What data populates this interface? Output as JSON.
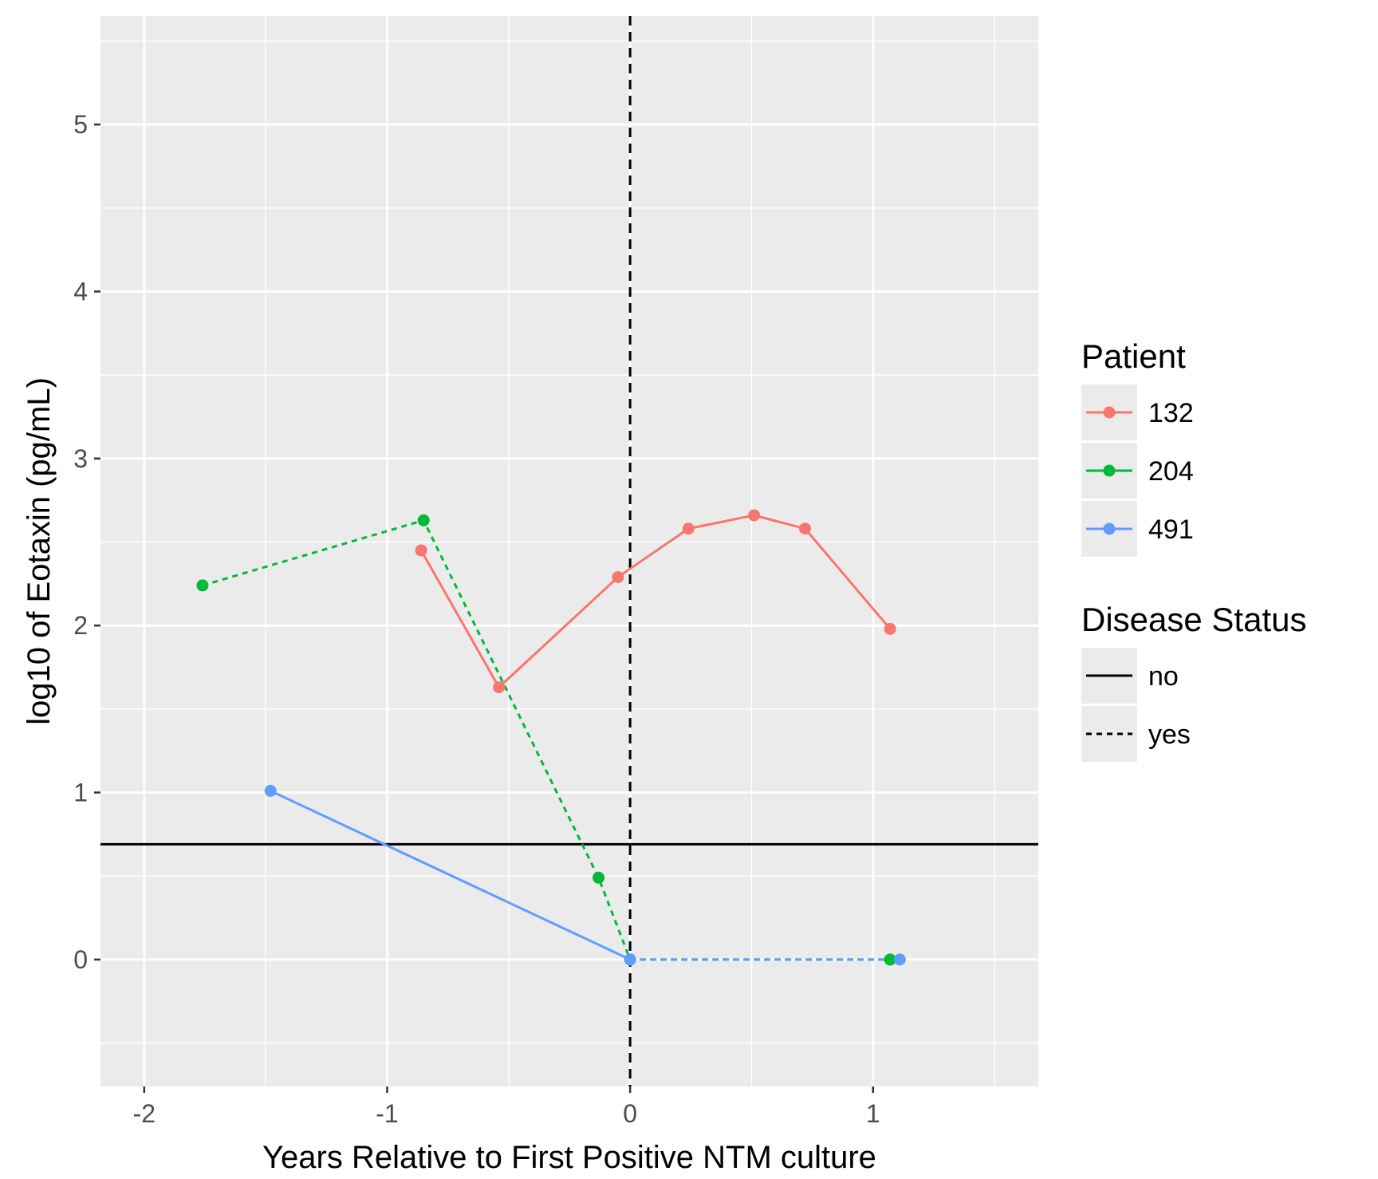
{
  "chart_data": {
    "type": "line",
    "title": "",
    "xlabel": "Years Relative to First Positive NTM culture",
    "ylabel": "log10 of Eotaxin (pg/mL)",
    "xlim": [
      -2.18,
      1.68
    ],
    "ylim": [
      -0.76,
      5.65
    ],
    "x_ticks": [
      -2,
      -1,
      0,
      1
    ],
    "x_tick_labels": [
      "-2",
      "-1",
      "0",
      "1"
    ],
    "y_ticks": [
      0,
      1,
      2,
      3,
      4,
      5
    ],
    "y_tick_labels": [
      "0",
      "1",
      "2",
      "3",
      "4",
      "5"
    ],
    "grid": true,
    "background": "#ebebeb",
    "reference_lines": [
      {
        "orientation": "vertical",
        "value": 0,
        "linetype": "dashed",
        "color": "#000000"
      },
      {
        "orientation": "horizontal",
        "value": 0.69,
        "linetype": "solid",
        "color": "#000000"
      }
    ],
    "series": [
      {
        "name": "132",
        "color": "#F8766D",
        "segments": [
          {
            "status": "no",
            "points": [
              [
                -0.86,
                2.45
              ],
              [
                -0.54,
                1.63
              ],
              [
                -0.05,
                2.29
              ],
              [
                0.24,
                2.58
              ],
              [
                0.51,
                2.66
              ],
              [
                0.72,
                2.58
              ],
              [
                1.07,
                1.98
              ]
            ]
          }
        ]
      },
      {
        "name": "204",
        "color": "#00BA38",
        "segments": [
          {
            "status": "yes",
            "points": [
              [
                -1.76,
                2.24
              ],
              [
                -0.85,
                2.63
              ],
              [
                -0.13,
                0.49
              ],
              [
                0.0,
                0.0
              ],
              [
                1.07,
                0.0
              ]
            ]
          }
        ]
      },
      {
        "name": "491",
        "color": "#619CFF",
        "segments": [
          {
            "status": "no",
            "points": [
              [
                -1.48,
                1.01
              ],
              [
                0.0,
                0.0
              ]
            ]
          },
          {
            "status": "yes",
            "points": [
              [
                0.0,
                0.0
              ],
              [
                1.11,
                0.0
              ]
            ]
          }
        ]
      }
    ],
    "legend": {
      "placement": "right",
      "patient_title": "Patient",
      "patient_entries": [
        {
          "label": "132",
          "color": "#F8766D"
        },
        {
          "label": "204",
          "color": "#00BA38"
        },
        {
          "label": "491",
          "color": "#619CFF"
        }
      ],
      "status_title": "Disease Status",
      "status_entries": [
        {
          "label": "no",
          "linetype": "solid"
        },
        {
          "label": "yes",
          "linetype": "dashed"
        }
      ]
    }
  }
}
